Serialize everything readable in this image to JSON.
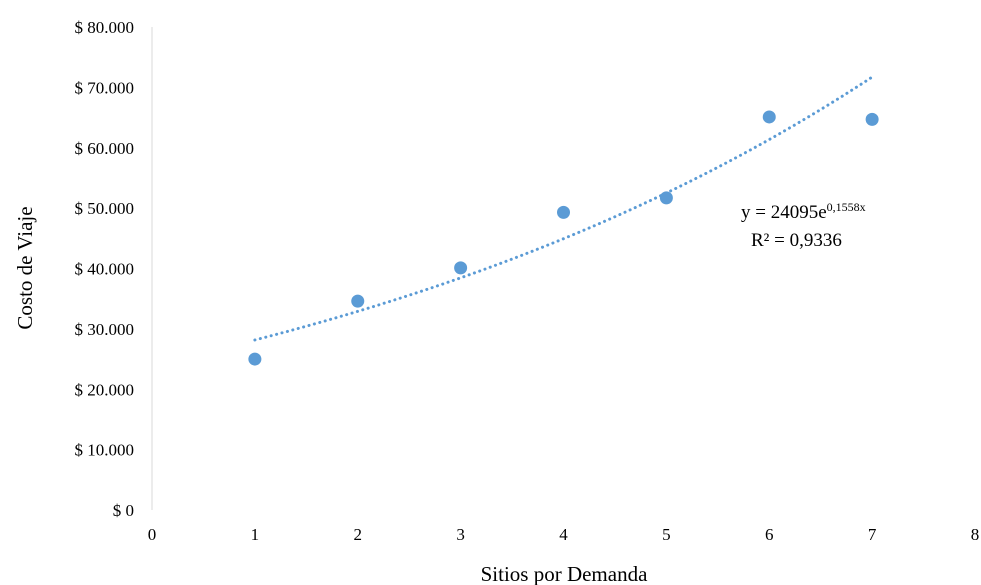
{
  "chart_data": {
    "type": "scatter",
    "title": "",
    "xlabel": "Sitios por Demanda",
    "ylabel": "Costo de Viaje",
    "xlim": [
      0,
      8
    ],
    "ylim": [
      0,
      80000
    ],
    "x_ticks": [
      "0",
      "1",
      "2",
      "3",
      "4",
      "5",
      "6",
      "7",
      "8"
    ],
    "y_ticks": [
      "$ 0",
      "$ 10.000",
      "$ 20.000",
      "$ 30.000",
      "$ 40.000",
      "$ 50.000",
      "$ 60.000",
      "$ 70.000",
      "$ 80.000"
    ],
    "grid": false,
    "legend": "none",
    "series": [
      {
        "color": "#5B9BD5",
        "points": [
          {
            "x": 1,
            "y": 25000
          },
          {
            "x": 2,
            "y": 34600
          },
          {
            "x": 3,
            "y": 40100
          },
          {
            "x": 4,
            "y": 49300
          },
          {
            "x": 5,
            "y": 51700
          },
          {
            "x": 6,
            "y": 65100
          },
          {
            "x": 7,
            "y": 64700
          }
        ]
      }
    ],
    "trendline": {
      "type": "exponential",
      "style": "dotted",
      "color": "#5B9BD5",
      "coefficient": 24095,
      "rate": 0.1558,
      "x_range": [
        1,
        7
      ],
      "equation_base": "y = 24095e",
      "equation_exponent": "0,1558x",
      "r_squared_label": "R² = 0,9336"
    }
  }
}
